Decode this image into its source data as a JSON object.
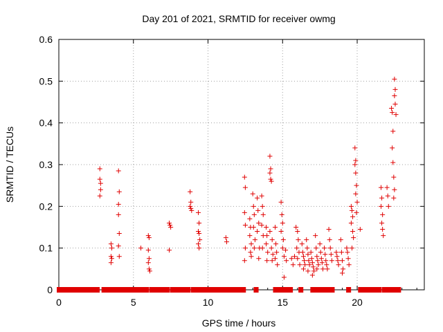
{
  "chart_data": {
    "type": "scatter",
    "title": "Day 201 of 2021, SRMTID for receiver owmg",
    "xlabel": "GPS time / hours",
    "ylabel": "SRMTID / TECUs",
    "xlim": [
      0,
      24.5
    ],
    "ylim": [
      0,
      0.6
    ],
    "xticks": [
      0,
      5,
      10,
      15,
      20
    ],
    "yticks": [
      0,
      0.1,
      0.2,
      0.3,
      0.4,
      0.5,
      0.6
    ],
    "xtick_labels": [
      "0",
      "5",
      "10",
      "15",
      "20"
    ],
    "ytick_labels": [
      "0",
      "0.1",
      "0.2",
      "0.3",
      "0.4",
      "0.5",
      "0.6"
    ],
    "grid": true,
    "marker": "plus",
    "color": "#e00000",
    "series": [
      {
        "name": "SRMTID",
        "points": [
          [
            2.75,
            0.29
          ],
          [
            2.75,
            0.265
          ],
          [
            2.8,
            0.255
          ],
          [
            2.8,
            0.24
          ],
          [
            2.75,
            0.225
          ],
          [
            3.5,
            0.11
          ],
          [
            3.55,
            0.1
          ],
          [
            3.5,
            0.08
          ],
          [
            3.55,
            0.075
          ],
          [
            3.5,
            0.065
          ],
          [
            4.0,
            0.285
          ],
          [
            4.05,
            0.235
          ],
          [
            4.0,
            0.205
          ],
          [
            4.0,
            0.18
          ],
          [
            4.05,
            0.135
          ],
          [
            4.0,
            0.105
          ],
          [
            4.05,
            0.08
          ],
          [
            5.5,
            0.1
          ],
          [
            6.0,
            0.13
          ],
          [
            6.05,
            0.125
          ],
          [
            6.0,
            0.095
          ],
          [
            6.05,
            0.075
          ],
          [
            6.0,
            0.065
          ],
          [
            6.05,
            0.05
          ],
          [
            6.1,
            0.045
          ],
          [
            7.4,
            0.16
          ],
          [
            7.45,
            0.155
          ],
          [
            7.5,
            0.15
          ],
          [
            7.4,
            0.095
          ],
          [
            8.8,
            0.235
          ],
          [
            8.85,
            0.21
          ],
          [
            8.8,
            0.2
          ],
          [
            8.85,
            0.195
          ],
          [
            8.9,
            0.19
          ],
          [
            9.35,
            0.185
          ],
          [
            9.4,
            0.16
          ],
          [
            9.35,
            0.14
          ],
          [
            9.4,
            0.135
          ],
          [
            9.45,
            0.12
          ],
          [
            9.35,
            0.11
          ],
          [
            9.4,
            0.1
          ],
          [
            11.2,
            0.125
          ],
          [
            11.25,
            0.115
          ],
          [
            12.45,
            0.27
          ],
          [
            12.5,
            0.245
          ],
          [
            12.45,
            0.185
          ],
          [
            12.5,
            0.155
          ],
          [
            12.5,
            0.1
          ],
          [
            12.45,
            0.07
          ],
          [
            12.8,
            0.17
          ],
          [
            12.85,
            0.15
          ],
          [
            12.8,
            0.13
          ],
          [
            12.9,
            0.11
          ],
          [
            12.85,
            0.09
          ],
          [
            12.9,
            0.08
          ],
          [
            13.0,
            0.23
          ],
          [
            13.05,
            0.2
          ],
          [
            13.1,
            0.18
          ],
          [
            13.05,
            0.15
          ],
          [
            13.15,
            0.12
          ],
          [
            13.1,
            0.1
          ],
          [
            13.3,
            0.22
          ],
          [
            13.35,
            0.19
          ],
          [
            13.4,
            0.16
          ],
          [
            13.3,
            0.14
          ],
          [
            13.45,
            0.1
          ],
          [
            13.4,
            0.075
          ],
          [
            13.6,
            0.225
          ],
          [
            13.65,
            0.2
          ],
          [
            13.7,
            0.18
          ],
          [
            13.6,
            0.155
          ],
          [
            13.7,
            0.13
          ],
          [
            13.65,
            0.1
          ],
          [
            13.9,
            0.15
          ],
          [
            13.95,
            0.13
          ],
          [
            13.9,
            0.11
          ],
          [
            14.0,
            0.09
          ],
          [
            13.95,
            0.07
          ],
          [
            14.15,
            0.32
          ],
          [
            14.2,
            0.29
          ],
          [
            14.15,
            0.28
          ],
          [
            14.2,
            0.265
          ],
          [
            14.25,
            0.26
          ],
          [
            14.15,
            0.14
          ],
          [
            14.3,
            0.12
          ],
          [
            14.25,
            0.1
          ],
          [
            14.35,
            0.085
          ],
          [
            14.3,
            0.07
          ],
          [
            14.5,
            0.15
          ],
          [
            14.55,
            0.11
          ],
          [
            14.6,
            0.09
          ],
          [
            14.5,
            0.075
          ],
          [
            14.65,
            0.06
          ],
          [
            14.9,
            0.21
          ],
          [
            14.95,
            0.18
          ],
          [
            15.0,
            0.16
          ],
          [
            14.9,
            0.14
          ],
          [
            15.05,
            0.12
          ],
          [
            15.0,
            0.1
          ],
          [
            15.1,
            0.08
          ],
          [
            15.2,
            0.095
          ],
          [
            15.25,
            0.07
          ],
          [
            15.1,
            0.03
          ],
          [
            15.6,
            0.075
          ],
          [
            15.7,
            0.06
          ],
          [
            15.8,
            0.08
          ],
          [
            15.9,
            0.15
          ],
          [
            16.0,
            0.14
          ],
          [
            16.05,
            0.12
          ],
          [
            15.95,
            0.1
          ],
          [
            16.1,
            0.09
          ],
          [
            16.0,
            0.075
          ],
          [
            16.15,
            0.06
          ],
          [
            16.3,
            0.11
          ],
          [
            16.35,
            0.09
          ],
          [
            16.4,
            0.08
          ],
          [
            16.45,
            0.07
          ],
          [
            16.5,
            0.06
          ],
          [
            16.4,
            0.05
          ],
          [
            16.6,
            0.12
          ],
          [
            16.65,
            0.1
          ],
          [
            16.7,
            0.085
          ],
          [
            16.75,
            0.07
          ],
          [
            16.8,
            0.06
          ],
          [
            16.7,
            0.045
          ],
          [
            16.9,
            0.09
          ],
          [
            16.95,
            0.075
          ],
          [
            17.0,
            0.065
          ],
          [
            17.05,
            0.055
          ],
          [
            17.1,
            0.045
          ],
          [
            17.0,
            0.035
          ],
          [
            17.2,
            0.13
          ],
          [
            17.25,
            0.1
          ],
          [
            17.3,
            0.08
          ],
          [
            17.35,
            0.07
          ],
          [
            17.4,
            0.06
          ],
          [
            17.3,
            0.05
          ],
          [
            17.5,
            0.11
          ],
          [
            17.55,
            0.09
          ],
          [
            17.6,
            0.075
          ],
          [
            17.65,
            0.065
          ],
          [
            17.7,
            0.05
          ],
          [
            17.8,
            0.1
          ],
          [
            17.85,
            0.085
          ],
          [
            17.9,
            0.07
          ],
          [
            17.95,
            0.06
          ],
          [
            18.0,
            0.05
          ],
          [
            18.1,
            0.145
          ],
          [
            18.15,
            0.12
          ],
          [
            18.2,
            0.1
          ],
          [
            18.25,
            0.085
          ],
          [
            18.3,
            0.07
          ],
          [
            18.6,
            0.09
          ],
          [
            18.65,
            0.08
          ],
          [
            18.7,
            0.07
          ],
          [
            18.75,
            0.06
          ],
          [
            18.9,
            0.12
          ],
          [
            18.95,
            0.09
          ],
          [
            19.0,
            0.07
          ],
          [
            19.05,
            0.05
          ],
          [
            19.0,
            0.04
          ],
          [
            19.3,
            0.1
          ],
          [
            19.35,
            0.09
          ],
          [
            19.4,
            0.075
          ],
          [
            19.45,
            0.06
          ],
          [
            19.6,
            0.2
          ],
          [
            19.65,
            0.19
          ],
          [
            19.7,
            0.175
          ],
          [
            19.6,
            0.16
          ],
          [
            19.7,
            0.14
          ],
          [
            19.75,
            0.125
          ],
          [
            19.65,
            0.1
          ],
          [
            19.85,
            0.34
          ],
          [
            19.9,
            0.31
          ],
          [
            19.85,
            0.3
          ],
          [
            19.9,
            0.28
          ],
          [
            19.95,
            0.25
          ],
          [
            19.9,
            0.23
          ],
          [
            20.0,
            0.21
          ],
          [
            19.95,
            0.185
          ],
          [
            20.2,
            0.145
          ],
          [
            21.6,
            0.245
          ],
          [
            21.65,
            0.22
          ],
          [
            21.6,
            0.2
          ],
          [
            21.7,
            0.18
          ],
          [
            21.65,
            0.16
          ],
          [
            21.7,
            0.145
          ],
          [
            21.75,
            0.13
          ],
          [
            22.0,
            0.245
          ],
          [
            22.05,
            0.225
          ],
          [
            22.1,
            0.2
          ],
          [
            22.3,
            0.435
          ],
          [
            22.35,
            0.425
          ],
          [
            22.4,
            0.38
          ],
          [
            22.35,
            0.34
          ],
          [
            22.4,
            0.305
          ],
          [
            22.45,
            0.27
          ],
          [
            22.5,
            0.24
          ],
          [
            22.45,
            0.22
          ],
          [
            22.5,
            0.505
          ],
          [
            22.55,
            0.48
          ],
          [
            22.5,
            0.465
          ],
          [
            22.55,
            0.445
          ],
          [
            22.6,
            0.42
          ]
        ]
      }
    ],
    "zero_segments": [
      [
        0.0,
        2.6
      ],
      [
        3.0,
        3.45
      ],
      [
        3.65,
        3.95
      ],
      [
        4.2,
        5.4
      ],
      [
        5.6,
        5.9
      ],
      [
        6.2,
        7.3
      ],
      [
        7.6,
        8.7
      ],
      [
        9.0,
        9.3
      ],
      [
        9.55,
        11.1
      ],
      [
        11.35,
        12.4
      ],
      [
        13.2,
        13.25
      ],
      [
        14.5,
        14.8
      ],
      [
        15.0,
        15.05
      ],
      [
        15.3,
        15.55
      ],
      [
        16.2,
        16.25
      ],
      [
        17.0,
        17.05
      ],
      [
        17.3,
        17.35
      ],
      [
        17.6,
        17.65
      ],
      [
        17.9,
        17.95
      ],
      [
        18.1,
        18.15
      ],
      [
        18.3,
        18.35
      ],
      [
        19.4,
        19.45
      ],
      [
        20.2,
        21.5
      ],
      [
        21.8,
        21.95
      ],
      [
        22.1,
        22.8
      ]
    ]
  }
}
